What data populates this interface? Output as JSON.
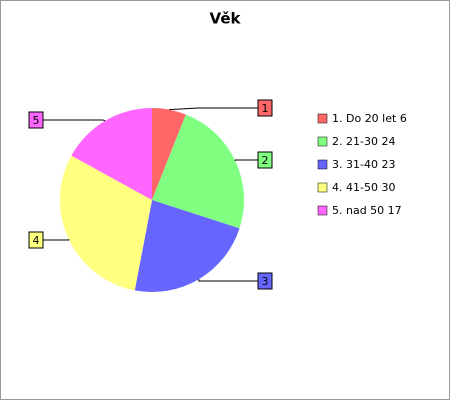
{
  "chart_data": {
    "type": "pie",
    "title": "Věk",
    "categories": [
      "1. Do 20 let 6",
      "2. 21-30 24",
      "3. 31-40 23",
      "4. 41-50 30",
      "5. nad 50 17"
    ],
    "callouts": [
      "1",
      "2",
      "3",
      "4",
      "5"
    ],
    "values": [
      6,
      24,
      23,
      30,
      17
    ],
    "colors": [
      "#ff6666",
      "#80ff80",
      "#6666ff",
      "#ffff80",
      "#ff66ff"
    ],
    "legend": "right"
  }
}
